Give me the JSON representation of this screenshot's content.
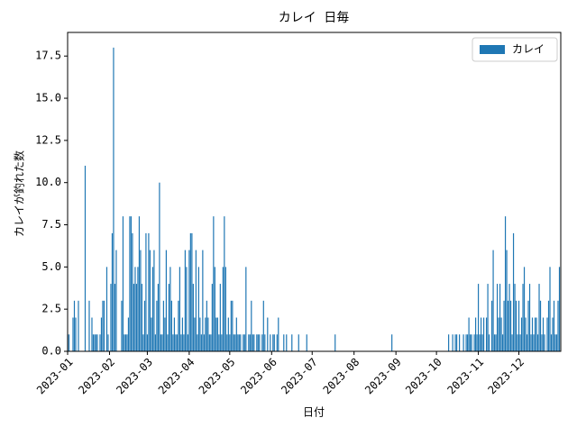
{
  "chart_data": {
    "type": "bar",
    "title": "カレイ 日毎",
    "x_label": "日付",
    "y_label": "カレイが釣れた数",
    "series": [
      {
        "name": "カレイ",
        "color": "#1f77b4",
        "x": [
          0,
          1,
          4,
          5,
          6,
          8,
          13,
          16,
          18,
          19,
          20,
          21,
          22,
          24,
          25,
          26,
          27,
          29,
          30,
          32,
          33,
          34,
          35,
          36,
          40,
          41,
          42,
          43,
          44,
          45,
          46,
          47,
          48,
          49,
          50,
          51,
          52,
          53,
          54,
          55,
          56,
          57,
          58,
          59,
          60,
          61,
          62,
          63,
          64,
          65,
          66,
          67,
          68,
          69,
          70,
          71,
          72,
          73,
          74,
          75,
          76,
          77,
          78,
          79,
          80,
          81,
          82,
          83,
          84,
          85,
          86,
          87,
          88,
          89,
          90,
          91,
          92,
          93,
          94,
          95,
          96,
          97,
          98,
          99,
          100,
          101,
          102,
          103,
          104,
          105,
          106,
          107,
          108,
          109,
          110,
          111,
          112,
          113,
          114,
          115,
          116,
          117,
          118,
          119,
          120,
          121,
          122,
          123,
          124,
          125,
          126,
          127,
          128,
          130,
          131,
          132,
          134,
          135,
          136,
          137,
          138,
          140,
          141,
          142,
          144,
          145,
          146,
          148,
          150,
          152,
          153,
          155,
          156,
          160,
          162,
          166,
          171,
          177,
          198,
          240,
          282,
          285,
          287,
          288,
          290,
          293,
          295,
          296,
          297,
          298,
          299,
          301,
          302,
          303,
          304,
          305,
          306,
          307,
          308,
          310,
          311,
          312,
          314,
          315,
          316,
          317,
          318,
          319,
          320,
          321,
          322,
          323,
          324,
          325,
          326,
          327,
          328,
          329,
          330,
          331,
          332,
          333,
          334,
          335,
          336,
          337,
          338,
          339,
          340,
          341,
          342,
          343,
          344,
          345,
          346,
          347,
          348,
          349,
          350,
          351,
          352,
          353,
          355,
          356,
          357,
          358,
          359,
          360,
          361,
          362,
          363,
          364
        ],
        "values": [
          1,
          1,
          2,
          3,
          2,
          3,
          11,
          3,
          2,
          1,
          1,
          1,
          1,
          1,
          2,
          3,
          3,
          5,
          1,
          4,
          7,
          18,
          4,
          6,
          3,
          8,
          1,
          1,
          1,
          2,
          8,
          8,
          7,
          4,
          5,
          4,
          5,
          8,
          6,
          4,
          1,
          3,
          7,
          1,
          7,
          6,
          2,
          5,
          6,
          1,
          3,
          4,
          10,
          1,
          1,
          3,
          2,
          6,
          1,
          4,
          5,
          3,
          1,
          2,
          1,
          1,
          3,
          5,
          1,
          2,
          1,
          6,
          5,
          1,
          6,
          7,
          7,
          4,
          2,
          6,
          1,
          5,
          2,
          1,
          6,
          1,
          2,
          3,
          2,
          1,
          1,
          4,
          8,
          5,
          2,
          2,
          1,
          4,
          1,
          5,
          8,
          5,
          1,
          2,
          1,
          3,
          3,
          1,
          1,
          2,
          1,
          1,
          1,
          1,
          1,
          5,
          1,
          1,
          3,
          1,
          1,
          1,
          1,
          1,
          1,
          3,
          1,
          2,
          1,
          1,
          1,
          1,
          2,
          1,
          1,
          1,
          1,
          1,
          1,
          1,
          1,
          1,
          1,
          1,
          1,
          1,
          1,
          1,
          2,
          1,
          1,
          1,
          2,
          1,
          4,
          1,
          2,
          1,
          2,
          2,
          4,
          1,
          3,
          6,
          1,
          1,
          4,
          2,
          4,
          2,
          1,
          3,
          8,
          6,
          3,
          4,
          3,
          1,
          7,
          4,
          3,
          1,
          3,
          1,
          2,
          4,
          5,
          2,
          1,
          3,
          4,
          1,
          2,
          1,
          2,
          2,
          1,
          4,
          3,
          1,
          2,
          1,
          2,
          3,
          5,
          1,
          2,
          3,
          1,
          1,
          3,
          5
        ]
      }
    ],
    "xlim": [
      0,
      365
    ],
    "xticks": [
      {
        "value": 0,
        "label": "2023-01"
      },
      {
        "value": 31,
        "label": "2023-02"
      },
      {
        "value": 59,
        "label": "2023-03"
      },
      {
        "value": 90,
        "label": "2023-04"
      },
      {
        "value": 120,
        "label": "2023-05"
      },
      {
        "value": 151,
        "label": "2023-06"
      },
      {
        "value": 181,
        "label": "2023-07"
      },
      {
        "value": 212,
        "label": "2023-08"
      },
      {
        "value": 243,
        "label": "2023-09"
      },
      {
        "value": 273,
        "label": "2023-10"
      },
      {
        "value": 304,
        "label": "2023-11"
      },
      {
        "value": 334,
        "label": "2023-12"
      }
    ],
    "ylim": [
      0,
      18.9
    ],
    "yticks": [
      {
        "value": 0,
        "label": "0.0"
      },
      2.5,
      {
        "value": 5,
        "label": "5.0"
      },
      7.5,
      {
        "value": 10,
        "label": "10.0"
      },
      12.5,
      {
        "value": 15,
        "label": "15.0"
      },
      17.5
    ],
    "legend": "upper right"
  }
}
